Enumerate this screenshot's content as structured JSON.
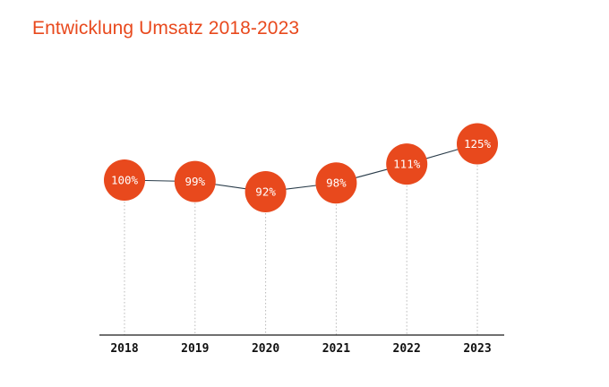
{
  "colors": {
    "accent": "#e8491d",
    "line": "#2a3c4a",
    "axis": "#1a1a1a",
    "guide": "#b8b8b8",
    "label_text": "#ffffff"
  },
  "chart_data": {
    "type": "line",
    "title": "Entwicklung Umsatz 2018-2023",
    "xlabel": "",
    "ylabel": "",
    "categories": [
      "2018",
      "2019",
      "2020",
      "2021",
      "2022",
      "2023"
    ],
    "values": [
      100,
      99,
      92,
      98,
      111,
      125
    ],
    "data_labels": [
      "100%",
      "99%",
      "92%",
      "98%",
      "111%",
      "125%"
    ],
    "unit": "%",
    "grid": false,
    "legend": "none"
  }
}
